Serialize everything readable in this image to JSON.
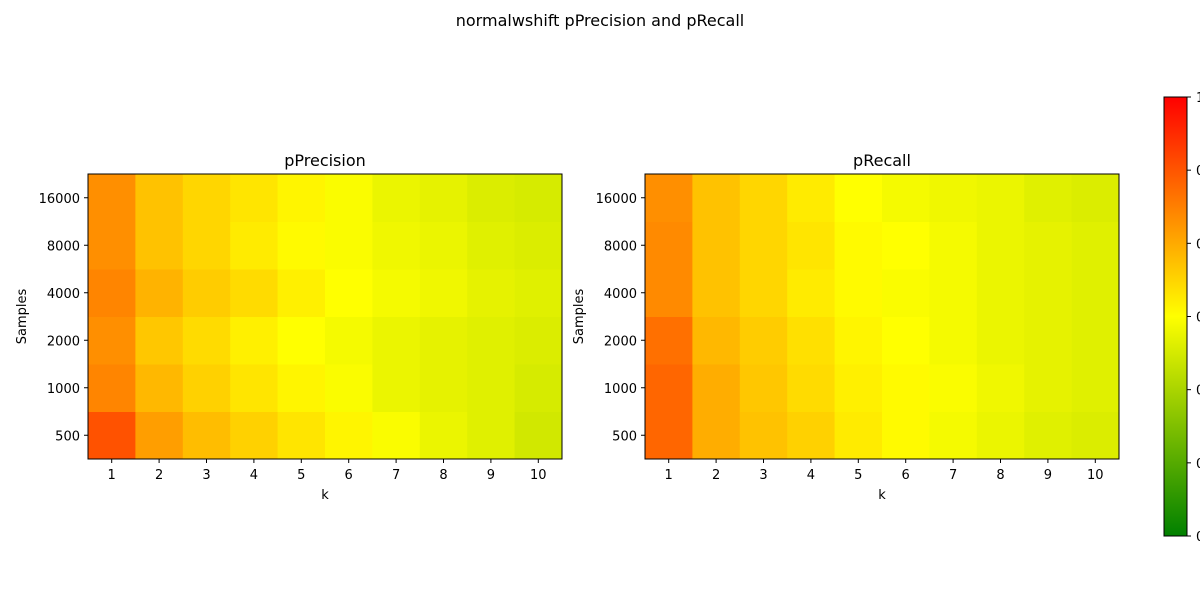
{
  "figure": {
    "suptitle": "normalwshift pPrecision and pRecall"
  },
  "colorbar": {
    "colors": [
      "#008000",
      "#ffff00",
      "#ff0000"
    ],
    "vmin": 0,
    "vmax": 1,
    "tick_labels": [
      "0",
      "0",
      "0",
      "0",
      "0",
      "0",
      "1"
    ]
  },
  "chart_data": [
    {
      "type": "heatmap",
      "title": "pPrecision",
      "xlabel": "k",
      "ylabel": "Samples",
      "x": [
        "1",
        "2",
        "3",
        "4",
        "5",
        "6",
        "7",
        "8",
        "9",
        "10"
      ],
      "y": [
        "500",
        "1000",
        "2000",
        "4000",
        "8000",
        "16000"
      ],
      "values": [
        [
          0.84,
          0.69,
          0.63,
          0.59,
          0.55,
          0.52,
          0.49,
          0.46,
          0.44,
          0.41
        ],
        [
          0.74,
          0.64,
          0.59,
          0.55,
          0.52,
          0.49,
          0.46,
          0.45,
          0.44,
          0.42
        ],
        [
          0.72,
          0.61,
          0.57,
          0.53,
          0.5,
          0.48,
          0.46,
          0.45,
          0.44,
          0.43
        ],
        [
          0.74,
          0.65,
          0.6,
          0.57,
          0.53,
          0.5,
          0.48,
          0.47,
          0.45,
          0.44
        ],
        [
          0.72,
          0.62,
          0.58,
          0.54,
          0.51,
          0.49,
          0.47,
          0.46,
          0.44,
          0.43
        ],
        [
          0.72,
          0.62,
          0.58,
          0.55,
          0.52,
          0.49,
          0.46,
          0.45,
          0.43,
          0.42
        ]
      ]
    },
    {
      "type": "heatmap",
      "title": "pRecall",
      "xlabel": "k",
      "ylabel": "Samples",
      "x": [
        "1",
        "2",
        "3",
        "4",
        "5",
        "6",
        "7",
        "8",
        "9",
        "10"
      ],
      "y": [
        "500",
        "1000",
        "2000",
        "4000",
        "8000",
        "16000"
      ],
      "values": [
        [
          0.8,
          0.66,
          0.62,
          0.59,
          0.54,
          0.51,
          0.48,
          0.46,
          0.44,
          0.43
        ],
        [
          0.8,
          0.66,
          0.61,
          0.57,
          0.53,
          0.51,
          0.49,
          0.47,
          0.45,
          0.44
        ],
        [
          0.78,
          0.64,
          0.6,
          0.56,
          0.52,
          0.5,
          0.48,
          0.46,
          0.45,
          0.44
        ],
        [
          0.73,
          0.62,
          0.58,
          0.54,
          0.51,
          0.49,
          0.48,
          0.46,
          0.45,
          0.44
        ],
        [
          0.73,
          0.62,
          0.58,
          0.55,
          0.51,
          0.5,
          0.48,
          0.46,
          0.45,
          0.44
        ],
        [
          0.72,
          0.62,
          0.58,
          0.54,
          0.5,
          0.48,
          0.47,
          0.46,
          0.44,
          0.43
        ]
      ]
    }
  ]
}
